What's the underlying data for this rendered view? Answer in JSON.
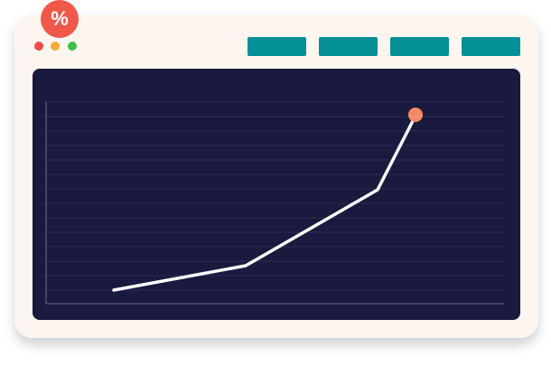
{
  "badge": {
    "label": "%"
  }
}
